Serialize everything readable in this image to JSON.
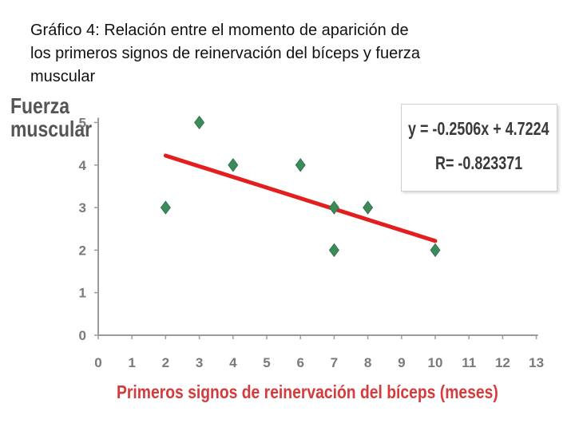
{
  "title": "Gráfico 4: Relación entre el momento de aparición de\nlos  primeros signos de reinervación del bíceps y fuerza\nmuscular",
  "chart_data": {
    "type": "scatter",
    "title": "Gráfico 4: Relación entre el momento de aparición de los primeros signos de reinervación del bíceps y fuerza muscular",
    "xlabel": "Primeros signos de reinervación del bíceps (meses)",
    "ylabel_lines": [
      "Fuerza",
      "muscular"
    ],
    "xlim": [
      0,
      13
    ],
    "ylim": [
      0,
      5
    ],
    "x_ticks": [
      "0",
      "1",
      "2",
      "3",
      "4",
      "5",
      "6",
      "7",
      "8",
      "9",
      "10",
      "11",
      "12",
      "13"
    ],
    "y_ticks": [
      "0",
      "1",
      "2",
      "3",
      "4",
      "5"
    ],
    "grid": false,
    "points": [
      {
        "x": 2,
        "y": 3
      },
      {
        "x": 3,
        "y": 5
      },
      {
        "x": 4,
        "y": 4
      },
      {
        "x": 6,
        "y": 4
      },
      {
        "x": 7,
        "y": 3
      },
      {
        "x": 7,
        "y": 2
      },
      {
        "x": 8,
        "y": 3
      },
      {
        "x": 10,
        "y": 2
      }
    ],
    "trendline": {
      "slope": -0.2506,
      "intercept": 4.7224,
      "x_range": [
        2,
        10
      ]
    },
    "equation": "y = -0.2506x + 4.7224",
    "r_value": "R= -0.823371",
    "colors": {
      "marker": "#3a8a5a",
      "trendline": "#e31e1e",
      "axis": "#9a9a9a",
      "xlabel": "#d63a3a"
    }
  }
}
